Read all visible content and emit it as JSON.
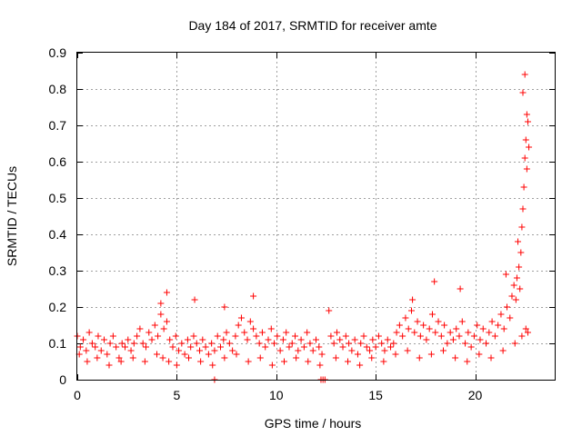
{
  "chart_data": {
    "type": "scatter",
    "title": "Day 184 of 2017, SRMTID for receiver amte",
    "xlabel": "GPS time / hours",
    "ylabel": "SRMTID / TECUs",
    "xlim": [
      0,
      24
    ],
    "ylim": [
      0,
      0.9
    ],
    "xticks": [
      0,
      5,
      10,
      15,
      20
    ],
    "xtick_labels": [
      "0",
      "5",
      "10",
      "15",
      "20"
    ],
    "yticks": [
      0,
      0.1,
      0.2,
      0.3,
      0.4,
      0.5,
      0.6,
      0.7,
      0.8,
      0.9
    ],
    "ytick_labels": [
      "0",
      "0.1",
      "0.2",
      "0.3",
      "0.4",
      "0.5",
      "0.6",
      "0.7",
      "0.8",
      "0.9"
    ],
    "grid": true,
    "marker": "+",
    "color": "#ff0000",
    "series": [
      {
        "name": "SRMTID",
        "x": [
          0.0,
          0.15,
          0.3,
          0.45,
          0.6,
          0.75,
          0.9,
          1.05,
          1.2,
          1.35,
          1.5,
          1.65,
          1.8,
          1.95,
          2.1,
          2.25,
          2.4,
          2.55,
          2.7,
          2.85,
          3.0,
          3.15,
          3.3,
          3.45,
          3.6,
          3.75,
          3.9,
          4.05,
          4.2,
          4.35,
          4.5,
          4.65,
          4.8,
          4.95,
          5.1,
          5.25,
          5.4,
          5.55,
          5.7,
          5.85,
          6.0,
          6.15,
          6.3,
          6.45,
          6.6,
          6.75,
          6.9,
          7.05,
          7.2,
          7.35,
          7.5,
          7.65,
          7.8,
          7.95,
          8.1,
          8.25,
          8.4,
          8.55,
          8.7,
          8.85,
          9.0,
          9.15,
          9.3,
          9.45,
          9.6,
          9.75,
          9.9,
          10.05,
          10.2,
          10.35,
          10.5,
          10.65,
          10.8,
          10.95,
          11.1,
          11.25,
          11.4,
          11.55,
          11.7,
          11.85,
          12.0,
          12.15,
          12.3,
          12.75,
          12.9,
          13.05,
          13.2,
          13.35,
          13.5,
          13.65,
          13.8,
          13.95,
          14.1,
          14.25,
          14.4,
          14.55,
          14.7,
          14.85,
          15.0,
          15.15,
          15.3,
          15.45,
          15.6,
          15.75,
          15.9,
          16.05,
          16.2,
          16.35,
          16.5,
          16.65,
          16.8,
          16.95,
          17.1,
          17.25,
          17.4,
          17.55,
          17.7,
          17.85,
          18.0,
          18.15,
          18.3,
          18.45,
          18.6,
          18.75,
          18.9,
          19.05,
          19.2,
          19.35,
          19.5,
          19.65,
          19.8,
          19.95,
          20.1,
          20.25,
          20.4,
          20.55,
          20.7,
          20.85,
          21.0,
          21.15,
          21.3,
          21.45,
          21.6,
          21.75,
          21.85,
          21.95,
          22.05,
          22.1,
          22.2,
          22.25,
          22.3,
          22.35,
          22.4,
          22.45,
          22.5,
          22.55,
          22.6,
          22.65,
          22.7,
          0.1,
          0.5,
          1.0,
          1.6,
          2.2,
          2.8,
          3.4,
          4.0,
          4.3,
          4.6,
          5.0,
          5.6,
          6.2,
          6.8,
          7.4,
          8.0,
          8.6,
          9.2,
          9.8,
          10.4,
          11.0,
          11.6,
          12.2,
          13.0,
          13.6,
          14.2,
          14.8,
          15.4,
          16.0,
          16.6,
          17.2,
          17.8,
          18.4,
          19.0,
          19.6,
          20.2,
          20.8,
          21.4,
          22.0,
          22.35,
          22.55,
          22.65,
          4.5,
          4.2,
          5.9,
          7.4,
          8.85,
          12.65,
          16.85,
          17.95,
          19.25,
          21.55,
          22.15,
          22.4,
          22.5,
          22.6
        ],
        "y": [
          0.12,
          0.09,
          0.11,
          0.08,
          0.13,
          0.1,
          0.09,
          0.12,
          0.08,
          0.11,
          0.07,
          0.1,
          0.12,
          0.09,
          0.06,
          0.1,
          0.09,
          0.11,
          0.08,
          0.1,
          0.12,
          0.14,
          0.1,
          0.09,
          0.13,
          0.11,
          0.15,
          0.12,
          0.18,
          0.14,
          0.16,
          0.11,
          0.09,
          0.12,
          0.08,
          0.1,
          0.07,
          0.11,
          0.09,
          0.12,
          0.1,
          0.08,
          0.11,
          0.09,
          0.07,
          0.1,
          0.08,
          0.12,
          0.09,
          0.11,
          0.13,
          0.1,
          0.08,
          0.12,
          0.15,
          0.17,
          0.13,
          0.11,
          0.16,
          0.14,
          0.12,
          0.1,
          0.13,
          0.09,
          0.11,
          0.14,
          0.1,
          0.12,
          0.08,
          0.11,
          0.13,
          0.09,
          0.1,
          0.12,
          0.08,
          0.11,
          0.09,
          0.13,
          0.1,
          0.08,
          0.11,
          0.09,
          0.07,
          0.12,
          0.1,
          0.13,
          0.11,
          0.09,
          0.12,
          0.1,
          0.08,
          0.11,
          0.07,
          0.1,
          0.12,
          0.09,
          0.08,
          0.11,
          0.09,
          0.12,
          0.1,
          0.08,
          0.11,
          0.09,
          0.1,
          0.13,
          0.15,
          0.12,
          0.17,
          0.14,
          0.19,
          0.13,
          0.16,
          0.12,
          0.15,
          0.11,
          0.14,
          0.18,
          0.13,
          0.16,
          0.12,
          0.15,
          0.1,
          0.13,
          0.11,
          0.14,
          0.12,
          0.16,
          0.1,
          0.13,
          0.09,
          0.12,
          0.15,
          0.11,
          0.14,
          0.1,
          0.13,
          0.16,
          0.12,
          0.15,
          0.18,
          0.14,
          0.2,
          0.17,
          0.23,
          0.26,
          0.22,
          0.28,
          0.31,
          0.25,
          0.35,
          0.42,
          0.47,
          0.53,
          0.61,
          0.66,
          0.58,
          0.71,
          0.64,
          0.07,
          0.05,
          0.06,
          0.04,
          0.05,
          0.06,
          0.05,
          0.07,
          0.06,
          0.05,
          0.04,
          0.06,
          0.05,
          0.04,
          0.06,
          0.07,
          0.05,
          0.06,
          0.04,
          0.05,
          0.06,
          0.05,
          0.04,
          0.06,
          0.05,
          0.04,
          0.06,
          0.05,
          0.07,
          0.08,
          0.06,
          0.07,
          0.08,
          0.06,
          0.05,
          0.07,
          0.06,
          0.08,
          0.1,
          0.12,
          0.14,
          0.13,
          0.24,
          0.21,
          0.22,
          0.2,
          0.23,
          0.19,
          0.22,
          0.27,
          0.25,
          0.29,
          0.38,
          0.79,
          0.84,
          0.73
        ],
        "zero_markers_x": [
          6.9,
          12.25,
          12.35,
          12.45
        ]
      }
    ]
  }
}
